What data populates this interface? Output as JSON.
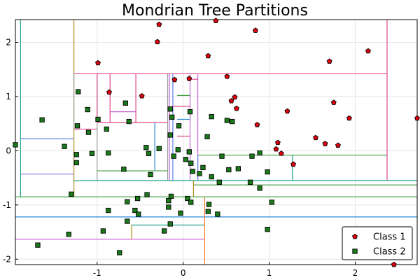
{
  "chart_data": {
    "type": "scatter",
    "title": "Mondrian Tree Partitions",
    "xlabel": "",
    "ylabel": "",
    "xlim": [
      -1.95,
      2.72
    ],
    "ylim": [
      -2.1,
      2.42
    ],
    "x_ticks": [
      -1,
      0,
      1,
      2
    ],
    "y_ticks": [
      -2,
      -1,
      0,
      1,
      2
    ],
    "x_tick_labels": [
      "-1",
      "0",
      "1",
      "2"
    ],
    "y_tick_labels": [
      "-2",
      "-1",
      "0",
      "1",
      "2"
    ],
    "grid": true,
    "legend_position": "bottom-right",
    "series": [
      {
        "name": "Class 1",
        "marker": "pentagon",
        "color": "#e0000b",
        "points": [
          [
            -0.28,
            2.33
          ],
          [
            0.38,
            2.4
          ],
          [
            0.84,
            2.22
          ],
          [
            -0.3,
            2.01
          ],
          [
            0.29,
            1.75
          ],
          [
            1.7,
            1.65
          ],
          [
            2.15,
            1.84
          ],
          [
            -0.99,
            1.62
          ],
          [
            -0.86,
            1.08
          ],
          [
            -0.48,
            1.01
          ],
          [
            0.51,
            1.37
          ],
          [
            -0.1,
            1.31
          ],
          [
            0.07,
            1.33
          ],
          [
            0.56,
            0.92
          ],
          [
            0.6,
            0.99
          ],
          [
            0.62,
            0.78
          ],
          [
            1.21,
            0.73
          ],
          [
            1.75,
            0.89
          ],
          [
            1.93,
            0.6
          ],
          [
            2.72,
            0.6
          ],
          [
            0.86,
            0.48
          ],
          [
            1.1,
            0.15
          ],
          [
            1.08,
            0.03
          ],
          [
            1.14,
            -0.05
          ],
          [
            1.54,
            0.24
          ],
          [
            1.65,
            0.13
          ],
          [
            1.8,
            0.1
          ],
          [
            1.28,
            -0.25
          ],
          [
            2.45,
            -2.1
          ]
        ]
      },
      {
        "name": "Class 2",
        "marker": "square",
        "color": "#1a7a1a",
        "points": [
          [
            -1.22,
            1.09
          ],
          [
            -1.11,
            0.76
          ],
          [
            -1.23,
            0.46
          ],
          [
            -1.1,
            0.34
          ],
          [
            -0.99,
            0.58
          ],
          [
            -0.89,
            0.4
          ],
          [
            -0.67,
            0.88
          ],
          [
            -0.63,
            0.54
          ],
          [
            -1.64,
            0.57
          ],
          [
            -1.95,
            0.11
          ],
          [
            -1.38,
            0.08
          ],
          [
            -1.06,
            -0.05
          ],
          [
            -0.87,
            -0.04
          ],
          [
            -1.24,
            -0.07
          ],
          [
            -1.24,
            -0.22
          ],
          [
            -0.43,
            0.06
          ],
          [
            -0.4,
            -0.05
          ],
          [
            -0.28,
            0.04
          ],
          [
            -0.15,
            0.29
          ],
          [
            -0.13,
            0.62
          ],
          [
            -0.15,
            0.77
          ],
          [
            -0.05,
            0.46
          ],
          [
            0.08,
            0.72
          ],
          [
            -0.06,
            0.02
          ],
          [
            -0.11,
            -0.1
          ],
          [
            0.07,
            -0.02
          ],
          [
            0.03,
            -0.16
          ],
          [
            0.09,
            -0.23
          ],
          [
            0.11,
            -0.38
          ],
          [
            0.28,
            0.26
          ],
          [
            0.33,
            0.63
          ],
          [
            0.51,
            0.56
          ],
          [
            0.57,
            0.54
          ],
          [
            0.45,
            -0.1
          ],
          [
            0.53,
            -0.35
          ],
          [
            0.64,
            -0.33
          ],
          [
            0.8,
            -0.1
          ],
          [
            0.89,
            -0.04
          ],
          [
            0.98,
            -0.39
          ],
          [
            0.23,
            -0.31
          ],
          [
            0.19,
            -0.42
          ],
          [
            0.33,
            -0.48
          ],
          [
            0.42,
            -0.58
          ],
          [
            0.78,
            -0.58
          ],
          [
            0.89,
            -0.69
          ],
          [
            -1.3,
            -0.8
          ],
          [
            -0.69,
            -0.34
          ],
          [
            -0.38,
            -0.44
          ],
          [
            -0.42,
            -0.81
          ],
          [
            -0.53,
            -0.88
          ],
          [
            -0.65,
            -0.94
          ],
          [
            -0.14,
            -0.84
          ],
          [
            -0.17,
            -0.92
          ],
          [
            -0.17,
            -1.04
          ],
          [
            -0.03,
            -1.15
          ],
          [
            0.05,
            -0.88
          ],
          [
            0.09,
            -0.95
          ],
          [
            0.3,
            -0.99
          ],
          [
            0.29,
            -1.12
          ],
          [
            0.4,
            -1.17
          ],
          [
            1.03,
            -0.95
          ],
          [
            -0.87,
            -1.1
          ],
          [
            -0.56,
            -1.1
          ],
          [
            -0.52,
            -1.17
          ],
          [
            -0.65,
            -1.3
          ],
          [
            -0.15,
            -1.35
          ],
          [
            -0.22,
            -1.48
          ],
          [
            -0.93,
            -1.48
          ],
          [
            -1.33,
            -1.54
          ],
          [
            -1.69,
            -1.74
          ],
          [
            -0.74,
            -1.88
          ],
          [
            0.98,
            -1.45
          ]
        ]
      }
    ],
    "partition_lines": [
      {
        "color": "#20a58a",
        "x1": -1.89,
        "y1": -0.85,
        "x2": -1.89,
        "y2": 2.42
      },
      {
        "color": "#b08a1e",
        "x1": -1.27,
        "y1": -0.85,
        "x2": -1.27,
        "y2": 2.42
      },
      {
        "color": "#e0498a",
        "x1": 2.37,
        "y1": -0.55,
        "x2": 2.37,
        "y2": 2.42
      },
      {
        "color": "#e0498a",
        "x1": -1.27,
        "y1": 1.42,
        "x2": 2.37,
        "y2": 1.42
      },
      {
        "color": "#5b7fe6",
        "x1": -1.89,
        "y1": 0.22,
        "x2": -1.27,
        "y2": 0.22
      },
      {
        "color": "#8a6fe6",
        "x1": -1.89,
        "y1": -0.43,
        "x2": -1.27,
        "y2": -0.43
      },
      {
        "color": "#999999",
        "x1": -1.27,
        "y1": 1.42,
        "x2": -1.27,
        "y2": 0.42
      },
      {
        "color": "#e0498a",
        "x1": -1.27,
        "y1": 0.4,
        "x2": -1.0,
        "y2": 0.4
      },
      {
        "color": "#999999",
        "x1": -1.0,
        "y1": 1.42,
        "x2": -1.0,
        "y2": -0.55
      },
      {
        "color": "#e0498a",
        "x1": -1.0,
        "y1": 1.42,
        "x2": -1.0,
        "y2": 0.52
      },
      {
        "color": "#e0498a",
        "x1": -0.85,
        "y1": 1.42,
        "x2": -0.85,
        "y2": 0.52
      },
      {
        "color": "#c865d6",
        "x1": -0.85,
        "y1": 0.72,
        "x2": -0.55,
        "y2": 0.72
      },
      {
        "color": "#e0498a",
        "x1": -0.55,
        "y1": 1.42,
        "x2": -0.55,
        "y2": 0.52
      },
      {
        "color": "#e0498a",
        "x1": -1.0,
        "y1": 0.52,
        "x2": -0.18,
        "y2": 0.52
      },
      {
        "color": "#2b8ed6",
        "x1": -0.33,
        "y1": 0.52,
        "x2": -0.33,
        "y2": -0.37
      },
      {
        "color": "#3a9a3a",
        "x1": -1.0,
        "y1": -0.37,
        "x2": -0.18,
        "y2": -0.37
      },
      {
        "color": "#999999",
        "x1": -0.18,
        "y1": 1.42,
        "x2": -0.18,
        "y2": -0.55
      },
      {
        "color": "#c865d6",
        "x1": -0.16,
        "y1": 1.42,
        "x2": -0.16,
        "y2": -0.55
      },
      {
        "color": "#5b7fe6",
        "x1": -0.12,
        "y1": 1.42,
        "x2": -0.12,
        "y2": -0.55
      },
      {
        "color": "#e0498a",
        "x1": -0.13,
        "y1": 0.82,
        "x2": 0.08,
        "y2": 0.82
      },
      {
        "color": "#3a9a3a",
        "x1": -0.07,
        "y1": 1.02,
        "x2": 0.08,
        "y2": 1.02
      },
      {
        "color": "#2b8ed6",
        "x1": -0.07,
        "y1": 0.58,
        "x2": 0.08,
        "y2": 0.58
      },
      {
        "color": "#e0498a",
        "x1": -0.07,
        "y1": 0.27,
        "x2": 0.08,
        "y2": 0.27
      },
      {
        "color": "#c865d6",
        "x1": 0.08,
        "y1": 1.42,
        "x2": 0.08,
        "y2": -0.55
      },
      {
        "color": "#c865d6",
        "x1": 0.17,
        "y1": 1.42,
        "x2": 0.17,
        "y2": -0.55
      },
      {
        "color": "#e0498a",
        "x1": 0.08,
        "y1": 1.32,
        "x2": 0.17,
        "y2": 1.32
      },
      {
        "color": "#5b7fe6",
        "x1": 0.17,
        "y1": -0.55,
        "x2": 0.17,
        "y2": -0.08
      },
      {
        "color": "#3a9a3a",
        "x1": 0.17,
        "y1": -0.08,
        "x2": 2.37,
        "y2": -0.08
      },
      {
        "color": "#20a58a",
        "x1": 1.27,
        "y1": -0.08,
        "x2": 1.27,
        "y2": -0.55
      },
      {
        "color": "#20a58a",
        "x1": -1.27,
        "y1": -0.55,
        "x2": 2.72,
        "y2": -0.55
      },
      {
        "color": "#3a9a3a",
        "x1": 0.12,
        "y1": -0.63,
        "x2": 2.72,
        "y2": -0.63
      },
      {
        "color": "#b08a1e",
        "x1": 0.12,
        "y1": -0.55,
        "x2": 0.12,
        "y2": -0.85
      },
      {
        "color": "#3a9a3a",
        "x1": -1.95,
        "y1": -0.85,
        "x2": 2.72,
        "y2": -0.85
      },
      {
        "color": "#2b8ed6",
        "x1": -1.95,
        "y1": -1.22,
        "x2": 2.72,
        "y2": -1.22
      },
      {
        "color": "#20a58a",
        "x1": -0.6,
        "y1": -1.37,
        "x2": 0.25,
        "y2": -1.37
      },
      {
        "color": "#b08a1e",
        "x1": -0.6,
        "y1": -1.37,
        "x2": -0.6,
        "y2": -1.63
      },
      {
        "color": "#c865d6",
        "x1": -1.95,
        "y1": -1.63,
        "x2": 0.25,
        "y2": -1.63
      },
      {
        "color": "#f07a3a",
        "x1": 0.25,
        "y1": -0.85,
        "x2": 0.25,
        "y2": -2.1
      }
    ]
  }
}
